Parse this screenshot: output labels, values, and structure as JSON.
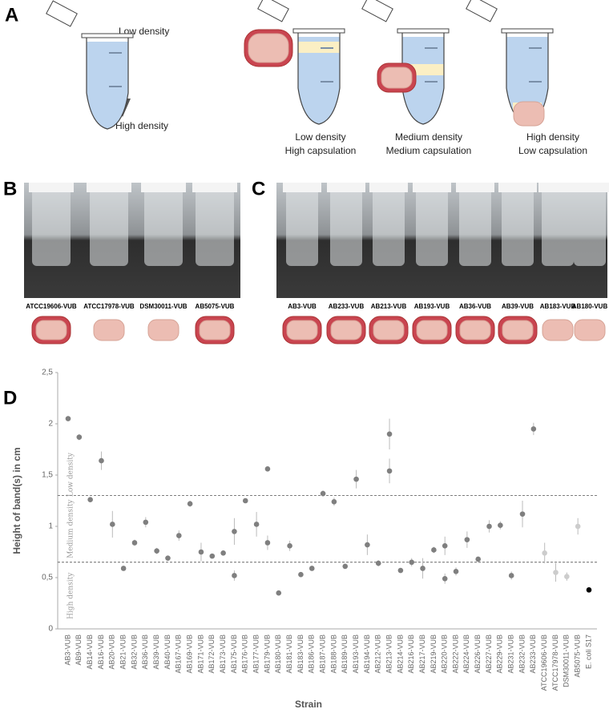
{
  "panel_a": {
    "label": "A",
    "top_label": "Low density",
    "bottom_label": "High density",
    "captions": [
      [
        "Low density",
        "High capsulation"
      ],
      [
        "Medium density",
        "Medium capsulation"
      ],
      [
        "High density",
        "Low capsulation"
      ]
    ]
  },
  "panel_b": {
    "label": "B",
    "strains": [
      "ATCC19606-VUB",
      "ATCC17978-VUB",
      "DSM30011-VUB",
      "AB5075-VUB"
    ],
    "capsule": [
      true,
      false,
      false,
      true
    ]
  },
  "panel_c": {
    "label": "C",
    "strains": [
      "AB3-VUB",
      "AB233-VUB",
      "AB213-VUB",
      "AB193-VUB",
      "AB36-VUB",
      "AB39-VUB",
      "AB183-VUB",
      "AB180-VUB"
    ],
    "capsule": [
      true,
      true,
      true,
      true,
      true,
      true,
      false,
      false
    ]
  },
  "chart_data": {
    "label": "D",
    "type": "scatter",
    "categories": [
      "AB3-VUB",
      "AB9-VUB",
      "AB14-VUB",
      "AB16-VUB",
      "AB20-VUB",
      "AB21-VUB",
      "AB32-VUB",
      "AB36-VUB",
      "AB39-VUB",
      "AB40-VUB",
      "AB167-VUB",
      "AB169-VUB",
      "AB171-VUB",
      "AB172-VUB",
      "AB173-VUB",
      "AB175-VUB",
      "AB176-VUB",
      "AB177-VUB",
      "AB179-VUB",
      "AB180-VUB",
      "AB181-VUB",
      "AB183-VUB",
      "AB186-VUB",
      "AB187-VUB",
      "AB188-VUB",
      "AB189-VUB",
      "AB193-VUB",
      "AB194-VUB",
      "AB212-VUB",
      "AB213-VUB",
      "AB214-VUB",
      "AB216-VUB",
      "AB217-VUB",
      "AB219-VUB",
      "AB220-VUB",
      "AB222-VUB",
      "AB224-VUB",
      "AB226-VUB",
      "AB227-VUB",
      "AB229-VUB",
      "AB231-VUB",
      "AB232-VUB",
      "AB233-VUB",
      "ATCC19606-VUB",
      "ATCC17978-VUB",
      "DSM30011-VUB",
      "AB5075-VUB",
      "E. coli S17"
    ],
    "series": [
      {
        "values": [
          2.05,
          1.87,
          1.26,
          1.64,
          1.02,
          0.59,
          0.84,
          1.04,
          0.76,
          0.69,
          0.91,
          1.22,
          0.75,
          0.71,
          0.74,
          0.95,
          1.25,
          1.02,
          1.56,
          0.35,
          0.81,
          0.53,
          0.59,
          1.32,
          1.24,
          0.61,
          1.46,
          0.82,
          0.64,
          1.9,
          0.57,
          0.65,
          0.59,
          0.77,
          0.81,
          0.56,
          0.87,
          0.68,
          1.0,
          1.01,
          0.52,
          1.12,
          1.95,
          0.74,
          0.55,
          0.51,
          1.0,
          0.38
        ],
        "errors": [
          0.02,
          0.03,
          0.02,
          0.09,
          0.13,
          0.01,
          0.03,
          0.05,
          0.03,
          0.02,
          0.05,
          0.03,
          0.09,
          0.01,
          0.02,
          0.13,
          0.01,
          0.12,
          0.02,
          0.01,
          0.05,
          0.02,
          0.01,
          0.03,
          0.04,
          0.01,
          0.09,
          0.1,
          0.03,
          0.15,
          0.01,
          0.04,
          0.1,
          0.03,
          0.09,
          0.04,
          0.08,
          0.02,
          0.06,
          0.04,
          0.04,
          0.13,
          0.06,
          0.1,
          0.09,
          0.04,
          0.08,
          0
        ]
      },
      {
        "values": [
          null,
          null,
          null,
          null,
          null,
          null,
          null,
          null,
          null,
          null,
          null,
          null,
          null,
          null,
          null,
          0.52,
          null,
          null,
          0.84,
          null,
          null,
          null,
          null,
          null,
          null,
          null,
          null,
          null,
          null,
          1.54,
          null,
          null,
          null,
          null,
          0.49,
          null,
          null,
          null,
          null,
          null,
          null,
          null,
          null,
          null,
          null,
          null,
          null,
          null
        ],
        "errors": [
          null,
          null,
          null,
          null,
          null,
          null,
          null,
          null,
          null,
          null,
          null,
          null,
          null,
          null,
          null,
          0.05,
          null,
          null,
          0.07,
          null,
          null,
          null,
          null,
          null,
          null,
          null,
          null,
          null,
          null,
          0.12,
          null,
          null,
          null,
          null,
          0.05,
          null,
          null,
          null,
          null,
          null,
          null,
          null,
          null,
          null,
          null,
          null,
          null,
          null
        ]
      }
    ],
    "point_colors": [
      "#7f7f7f",
      "#7f7f7f",
      "#7f7f7f",
      "#7f7f7f",
      "#7f7f7f",
      "#7f7f7f",
      "#7f7f7f",
      "#7f7f7f",
      "#7f7f7f",
      "#7f7f7f",
      "#7f7f7f",
      "#7f7f7f",
      "#7f7f7f",
      "#7f7f7f",
      "#7f7f7f",
      "#7f7f7f",
      "#7f7f7f",
      "#7f7f7f",
      "#7f7f7f",
      "#7f7f7f",
      "#7f7f7f",
      "#7f7f7f",
      "#7f7f7f",
      "#7f7f7f",
      "#7f7f7f",
      "#7f7f7f",
      "#7f7f7f",
      "#7f7f7f",
      "#7f7f7f",
      "#7f7f7f",
      "#7f7f7f",
      "#7f7f7f",
      "#7f7f7f",
      "#7f7f7f",
      "#7f7f7f",
      "#7f7f7f",
      "#7f7f7f",
      "#7f7f7f",
      "#7f7f7f",
      "#7f7f7f",
      "#7f7f7f",
      "#7f7f7f",
      "#7f7f7f",
      "#cccccc",
      "#cccccc",
      "#cccccc",
      "#cccccc",
      "#000000"
    ],
    "ylim": [
      0,
      2.5
    ],
    "yticks": [
      0,
      {
        "value": 0.5,
        "label": "0,5"
      },
      1,
      {
        "value": 1.5,
        "label": "1,5"
      },
      2,
      {
        "value": 2.5,
        "label": "2,5"
      }
    ],
    "y_label": "Height of band(s) in cm",
    "x_label": "Strain",
    "threshold_lines": [
      1.3,
      0.65
    ],
    "region_labels": [
      "Low density",
      "Medium density",
      "High density"
    ]
  }
}
